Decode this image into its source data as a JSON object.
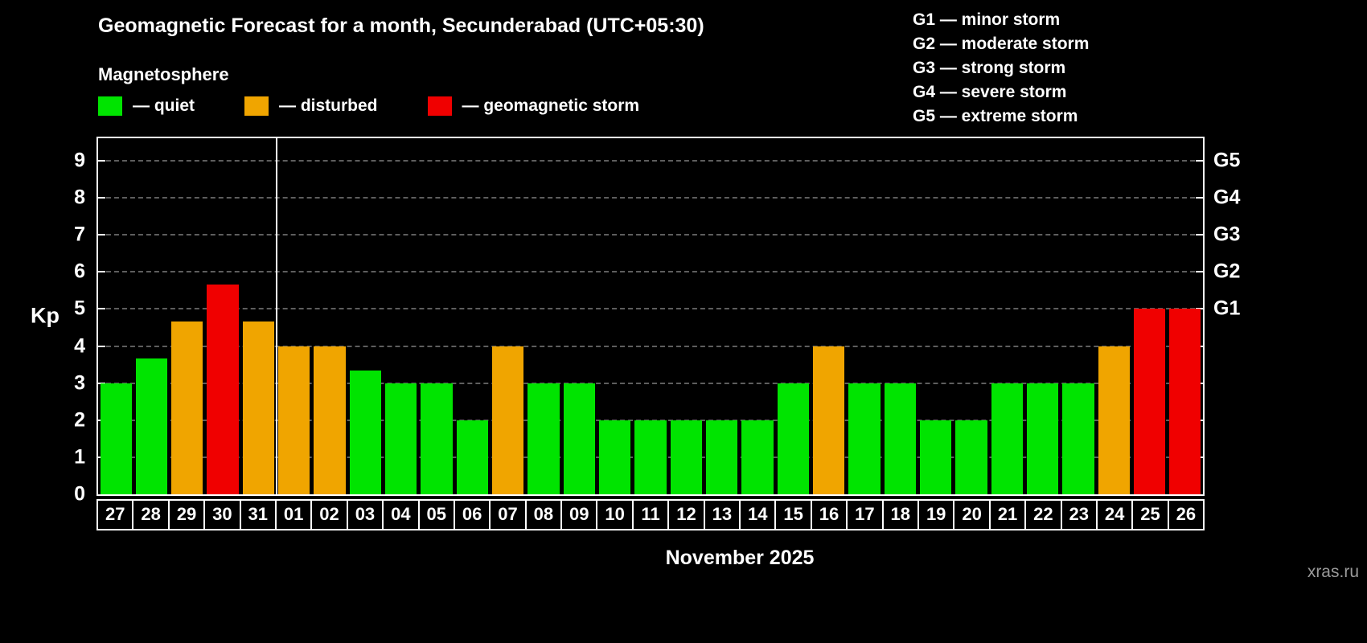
{
  "header": {
    "title": "Geomagnetic Forecast for a month, Secunderabad (UTC+05:30)",
    "subtitle": "Magnetosphere"
  },
  "legend": [
    {
      "key": "quiet",
      "label": "— quiet",
      "color": "#00e400"
    },
    {
      "key": "disturbed",
      "label": "— disturbed",
      "color": "#f0a500"
    },
    {
      "key": "storm",
      "label": "— geomagnetic storm",
      "color": "#f00000"
    }
  ],
  "storm_scale": [
    {
      "label": "G1 — minor storm"
    },
    {
      "label": "G2 — moderate storm"
    },
    {
      "label": "G3 — strong storm"
    },
    {
      "label": "G4 — severe storm"
    },
    {
      "label": "G5 — extreme storm"
    }
  ],
  "chart_data": {
    "type": "bar",
    "title": "Geomagnetic Forecast for a month, Secunderabad (UTC+05:30)",
    "ylabel": "Kp",
    "xlabel": "November 2025",
    "ylim": [
      0,
      9.3
    ],
    "yticks": [
      0,
      1,
      2,
      3,
      4,
      5,
      6,
      7,
      8,
      9
    ],
    "grid": "dashed-horizontal",
    "legend_position": "top-left",
    "categories": [
      "27",
      "28",
      "29",
      "30",
      "31",
      "01",
      "02",
      "03",
      "04",
      "05",
      "06",
      "07",
      "08",
      "09",
      "10",
      "11",
      "12",
      "13",
      "14",
      "15",
      "16",
      "17",
      "18",
      "19",
      "20",
      "21",
      "22",
      "23",
      "24",
      "25",
      "26"
    ],
    "series": [
      {
        "name": "Kp forecast",
        "values": [
          3,
          3.67,
          4.67,
          5.67,
          4.67,
          4,
          4,
          3.33,
          3,
          3,
          2,
          4,
          3,
          3,
          2,
          2,
          2,
          2,
          2,
          3,
          4,
          3,
          3,
          2,
          2,
          3,
          3,
          3,
          4,
          5,
          5
        ]
      }
    ],
    "statuses": [
      "quiet",
      "quiet",
      "disturbed",
      "storm",
      "disturbed",
      "disturbed",
      "disturbed",
      "quiet",
      "quiet",
      "quiet",
      "quiet",
      "disturbed",
      "quiet",
      "quiet",
      "quiet",
      "quiet",
      "quiet",
      "quiet",
      "quiet",
      "quiet",
      "disturbed",
      "quiet",
      "quiet",
      "quiet",
      "quiet",
      "quiet",
      "quiet",
      "quiet",
      "disturbed",
      "storm",
      "storm"
    ],
    "month_separator_after_index": 4,
    "right_axis": [
      {
        "label": "G5",
        "value": 9
      },
      {
        "label": "G4",
        "value": 8
      },
      {
        "label": "G3",
        "value": 7
      },
      {
        "label": "G2",
        "value": 6
      },
      {
        "label": "G1",
        "value": 5
      }
    ]
  },
  "footer": {
    "month_label": "November 2025",
    "watermark": "xras.ru"
  }
}
